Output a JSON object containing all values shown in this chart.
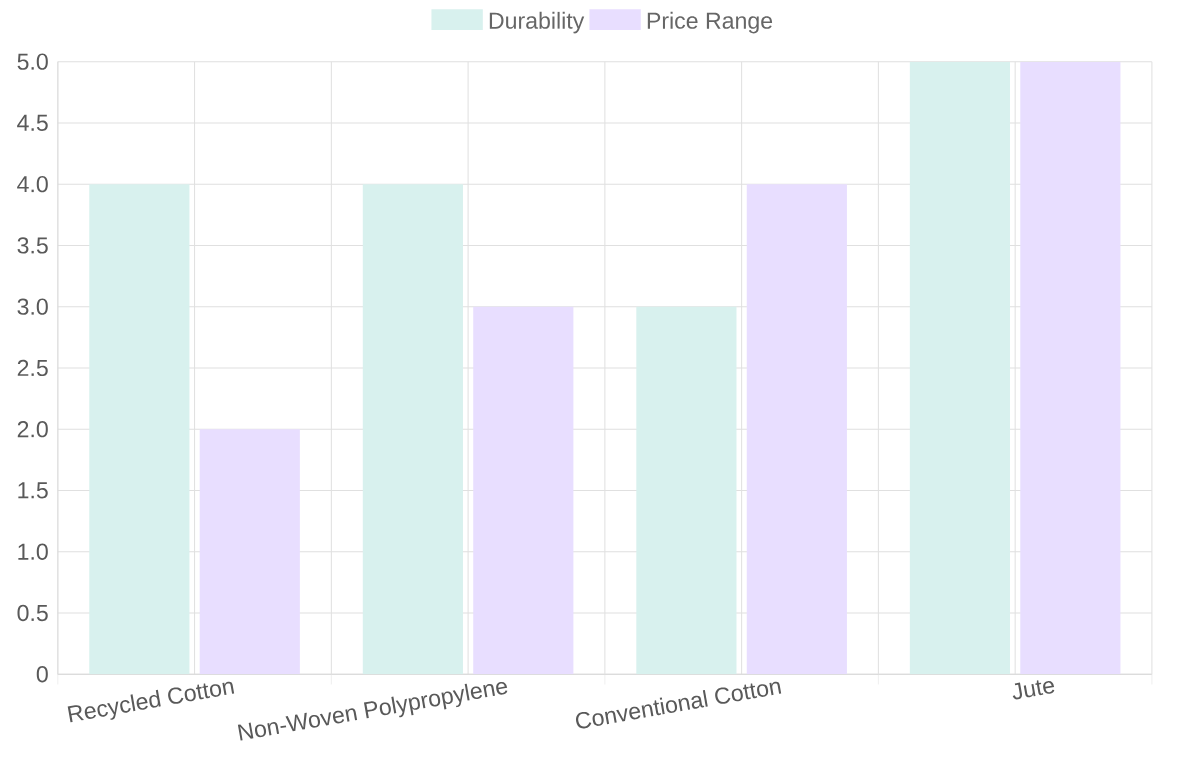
{
  "chart_data": {
    "type": "bar",
    "categories": [
      "Recycled Cotton",
      "Non-Woven Polypropylene",
      "Conventional Cotton",
      "Jute"
    ],
    "series": [
      {
        "name": "Durability",
        "color": "#d8f1ee",
        "values": [
          4,
          4,
          3,
          5
        ]
      },
      {
        "name": "Price Range",
        "color": "#e8deff",
        "values": [
          2,
          3,
          4,
          5
        ]
      }
    ],
    "ylim": [
      0,
      5
    ],
    "yticks": [
      0,
      0.5,
      {
        "value": 1,
        "label": "1.0"
      },
      1.5,
      {
        "value": 2,
        "label": "2.0"
      },
      2.5,
      {
        "value": 3,
        "label": "3.0"
      },
      3.5,
      {
        "value": 4,
        "label": "4.0"
      },
      4.5,
      {
        "value": 5,
        "label": "5.0"
      }
    ],
    "grid": true,
    "legend": "top"
  }
}
